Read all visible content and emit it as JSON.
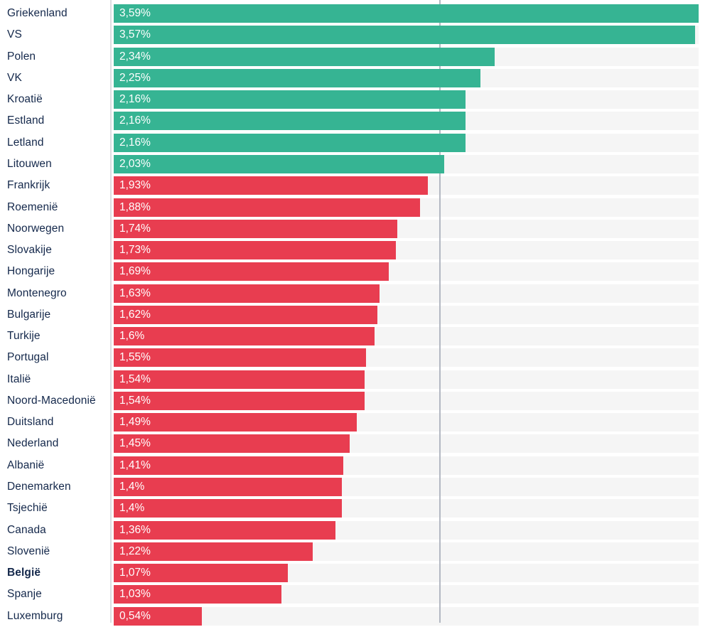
{
  "chart": {
    "colors": {
      "teal": "#36b493",
      "red": "#e83d50",
      "track": "#f5f5f5",
      "gridline": "#b3b8c2",
      "axisline": "#dcdde1",
      "label_text": "#14284b",
      "value_text": "#ffffff"
    },
    "rows": [
      {
        "label": "Griekenland",
        "display": "3,59%",
        "value": 3.59,
        "color": "teal",
        "bold": false
      },
      {
        "label": "VS",
        "display": "3,57%",
        "value": 3.57,
        "color": "teal",
        "bold": false
      },
      {
        "label": "Polen",
        "display": "2,34%",
        "value": 2.34,
        "color": "teal",
        "bold": false
      },
      {
        "label": "VK",
        "display": "2,25%",
        "value": 2.25,
        "color": "teal",
        "bold": false
      },
      {
        "label": "Kroatië",
        "display": "2,16%",
        "value": 2.16,
        "color": "teal",
        "bold": false
      },
      {
        "label": "Estland",
        "display": "2,16%",
        "value": 2.16,
        "color": "teal",
        "bold": false
      },
      {
        "label": "Letland",
        "display": "2,16%",
        "value": 2.16,
        "color": "teal",
        "bold": false
      },
      {
        "label": "Litouwen",
        "display": "2,03%",
        "value": 2.03,
        "color": "teal",
        "bold": false
      },
      {
        "label": "Frankrijk",
        "display": "1,93%",
        "value": 1.93,
        "color": "red",
        "bold": false
      },
      {
        "label": "Roemenië",
        "display": "1,88%",
        "value": 1.88,
        "color": "red",
        "bold": false
      },
      {
        "label": "Noorwegen",
        "display": "1,74%",
        "value": 1.74,
        "color": "red",
        "bold": false
      },
      {
        "label": "Slovakije",
        "display": "1,73%",
        "value": 1.73,
        "color": "red",
        "bold": false
      },
      {
        "label": "Hongarije",
        "display": "1,69%",
        "value": 1.69,
        "color": "red",
        "bold": false
      },
      {
        "label": "Montenegro",
        "display": "1,63%",
        "value": 1.63,
        "color": "red",
        "bold": false
      },
      {
        "label": "Bulgarije",
        "display": "1,62%",
        "value": 1.62,
        "color": "red",
        "bold": false
      },
      {
        "label": "Turkije",
        "display": "1,6%",
        "value": 1.6,
        "color": "red",
        "bold": false
      },
      {
        "label": "Portugal",
        "display": "1,55%",
        "value": 1.55,
        "color": "red",
        "bold": false
      },
      {
        "label": "Italië",
        "display": "1,54%",
        "value": 1.54,
        "color": "red",
        "bold": false
      },
      {
        "label": "Noord-Macedonië",
        "display": "1,54%",
        "value": 1.54,
        "color": "red",
        "bold": false
      },
      {
        "label": "Duitsland",
        "display": "1,49%",
        "value": 1.49,
        "color": "red",
        "bold": false
      },
      {
        "label": "Nederland",
        "display": "1,45%",
        "value": 1.45,
        "color": "red",
        "bold": false
      },
      {
        "label": "Albanië",
        "display": "1,41%",
        "value": 1.41,
        "color": "red",
        "bold": false
      },
      {
        "label": "Denemarken",
        "display": "1,4%",
        "value": 1.4,
        "color": "red",
        "bold": false
      },
      {
        "label": "Tsjechië",
        "display": "1,4%",
        "value": 1.4,
        "color": "red",
        "bold": false
      },
      {
        "label": "Canada",
        "display": "1,36%",
        "value": 1.36,
        "color": "red",
        "bold": false
      },
      {
        "label": "Slovenië",
        "display": "1,22%",
        "value": 1.22,
        "color": "red",
        "bold": false
      },
      {
        "label": "België",
        "display": "1,07%",
        "value": 1.07,
        "color": "red",
        "bold": true
      },
      {
        "label": "Spanje",
        "display": "1,03%",
        "value": 1.03,
        "color": "red",
        "bold": false
      },
      {
        "label": "Luxemburg",
        "display": "0,54%",
        "value": 0.54,
        "color": "red",
        "bold": false
      }
    ]
  },
  "chart_data": {
    "type": "bar",
    "orientation": "horizontal",
    "title": "",
    "xlabel": "",
    "ylabel": "",
    "categories": [
      "Griekenland",
      "VS",
      "Polen",
      "VK",
      "Kroatië",
      "Estland",
      "Letland",
      "Litouwen",
      "Frankrijk",
      "Roemenië",
      "Noorwegen",
      "Slovakije",
      "Hongarije",
      "Montenegro",
      "Bulgarije",
      "Turkije",
      "Portugal",
      "Italië",
      "Noord-Macedonië",
      "Duitsland",
      "Nederland",
      "Albanië",
      "Denemarken",
      "Tsjechië",
      "Canada",
      "Slovenië",
      "België",
      "Spanje",
      "Luxemburg"
    ],
    "values": [
      3.59,
      3.57,
      2.34,
      2.25,
      2.16,
      2.16,
      2.16,
      2.03,
      1.93,
      1.88,
      1.74,
      1.73,
      1.69,
      1.63,
      1.62,
      1.6,
      1.55,
      1.54,
      1.54,
      1.49,
      1.45,
      1.41,
      1.4,
      1.4,
      1.36,
      1.22,
      1.07,
      1.03,
      0.54
    ],
    "value_labels": [
      "3,59%",
      "3,57%",
      "2,34%",
      "2,25%",
      "2,16%",
      "2,16%",
      "2,16%",
      "2,03%",
      "1,93%",
      "1,88%",
      "1,74%",
      "1,73%",
      "1,69%",
      "1,63%",
      "1,62%",
      "1,6%",
      "1,55%",
      "1,54%",
      "1,54%",
      "1,49%",
      "1,45%",
      "1,41%",
      "1,4%",
      "1,4%",
      "1,36%",
      "1,22%",
      "1,07%",
      "1,03%",
      "0,54%"
    ],
    "xlim": [
      0,
      3.59
    ],
    "gridlines_x": [
      2
    ],
    "grid": "vertical-line-at-2",
    "legend": null,
    "highlighted_category": "België",
    "teal_group_count": 8
  }
}
